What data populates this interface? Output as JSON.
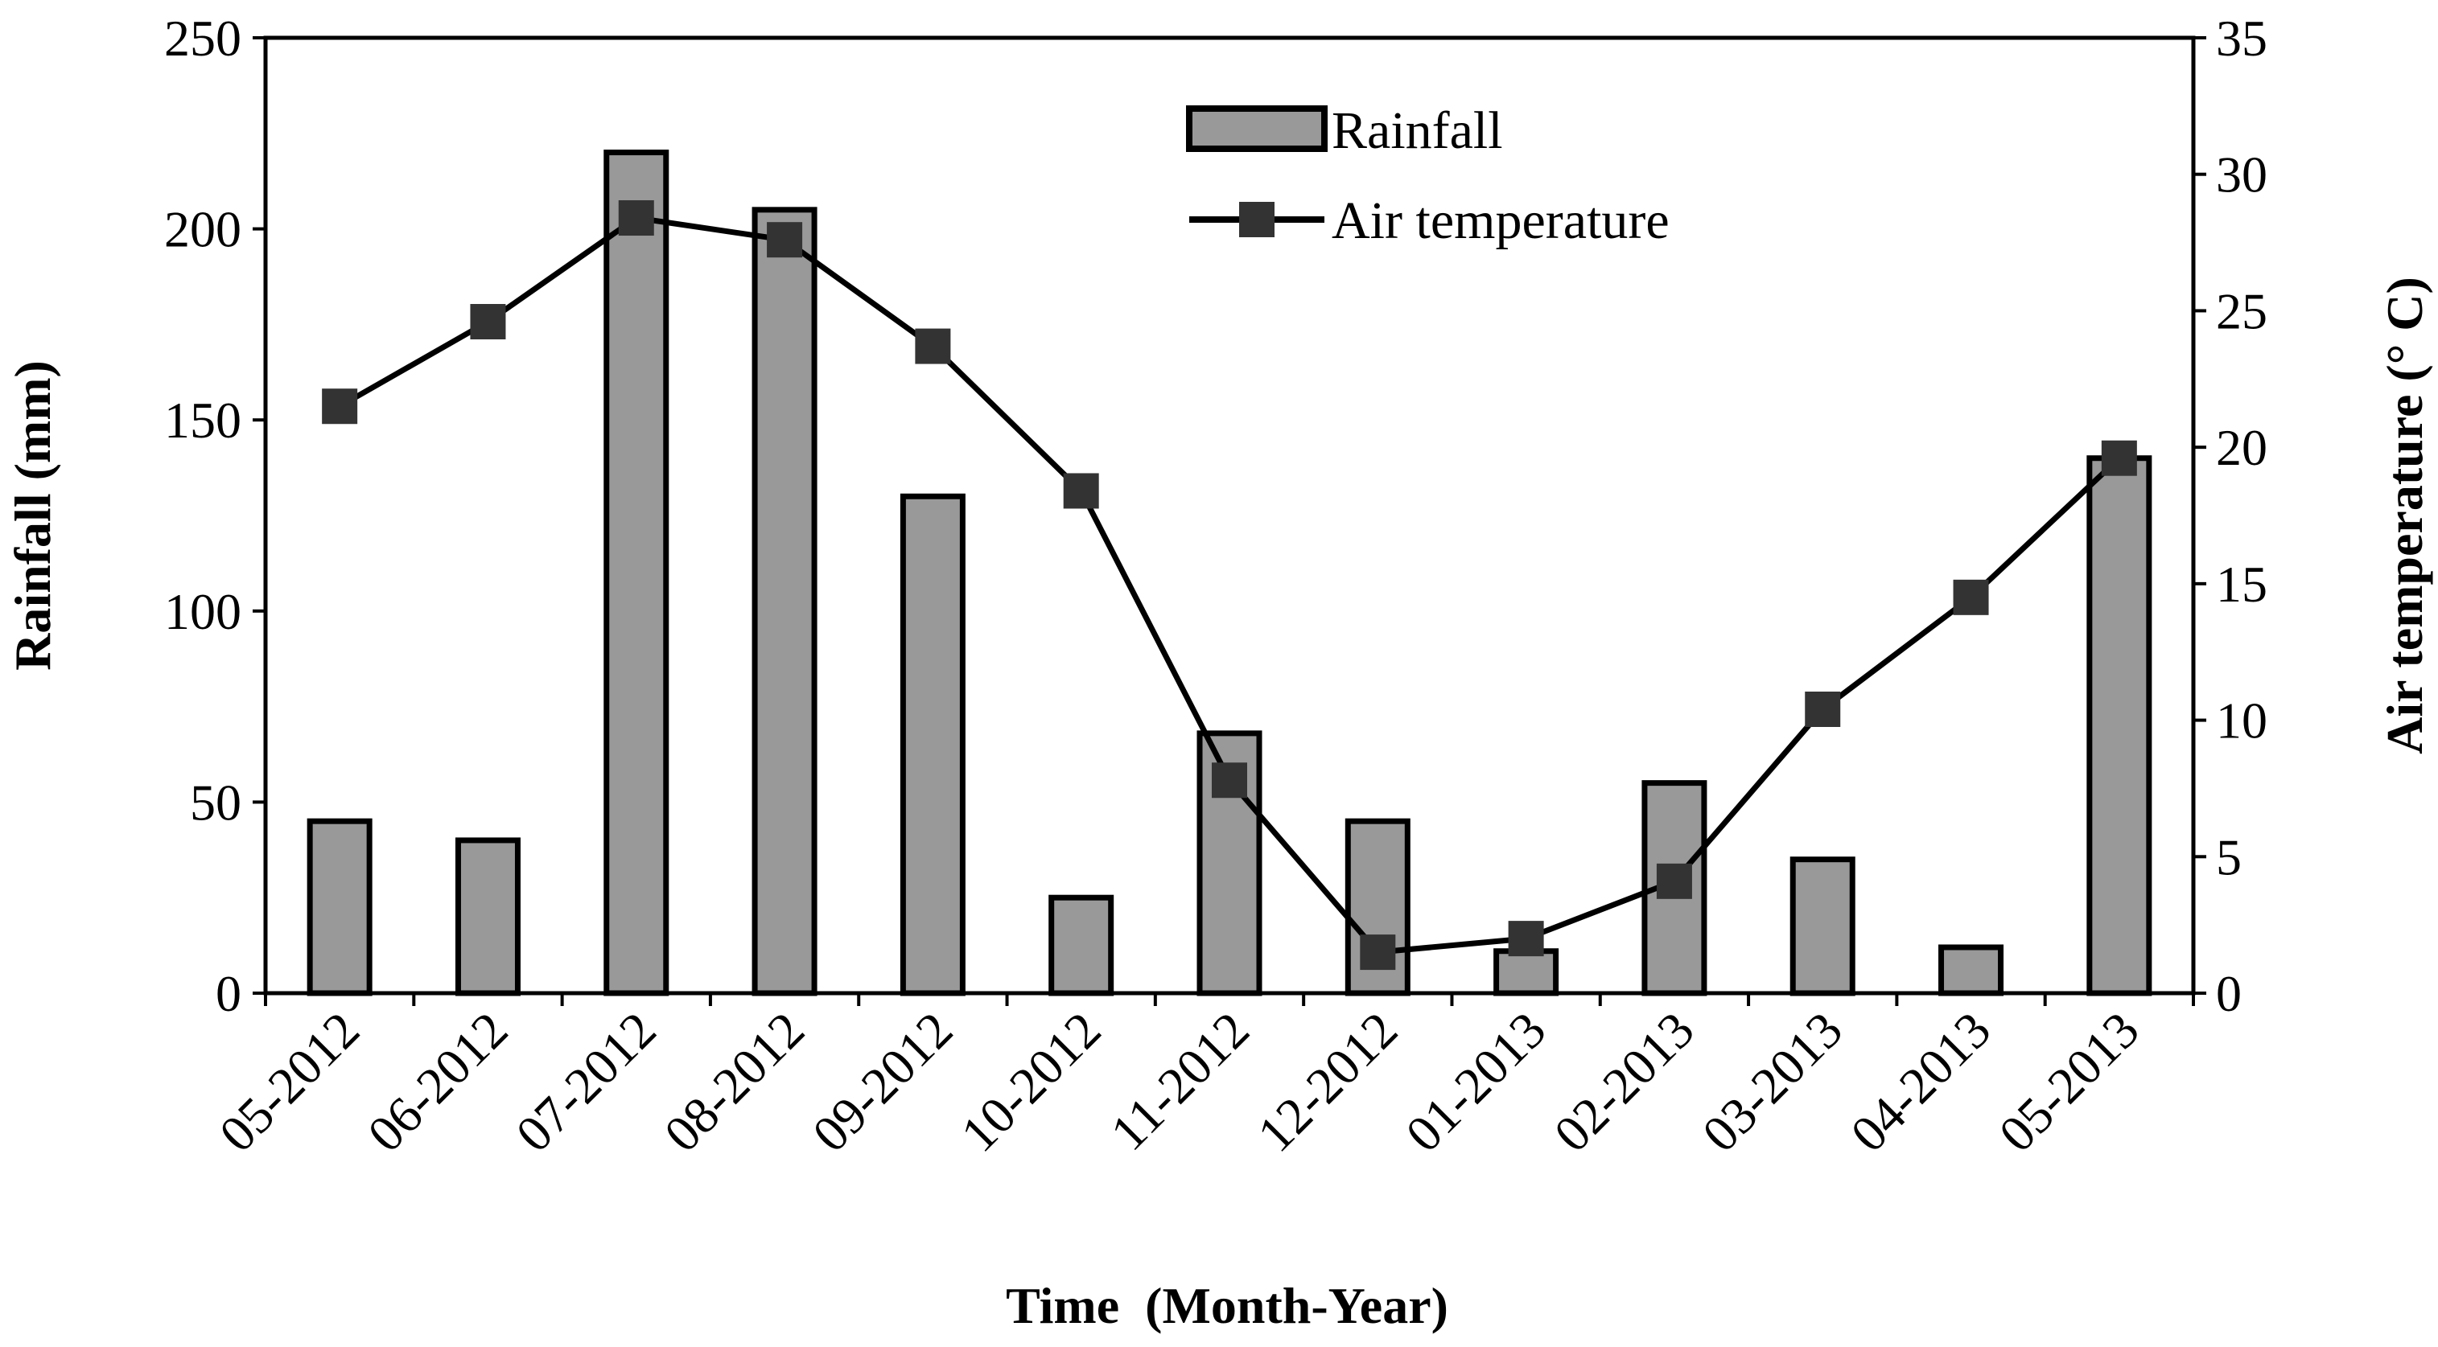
{
  "chart_data": {
    "type": "bar",
    "title": "",
    "xlabel": "Time  (Month-Year)",
    "ylabel": "Rainfall (mm)",
    "y2label": "Air temperature (° C)",
    "categories": [
      "05-2012",
      "06-2012",
      "07-2012",
      "08-2012",
      "09-2012",
      "10-2012",
      "11-2012",
      "12-2012",
      "01-2013",
      "02-2013",
      "03-2013",
      "04-2013",
      "05-2013"
    ],
    "ylim": [
      0,
      250
    ],
    "yticks": [
      0,
      50,
      100,
      150,
      200,
      250
    ],
    "y2lim": [
      0,
      35
    ],
    "y2ticks": [
      0,
      5,
      10,
      15,
      20,
      25,
      30,
      35
    ],
    "legend_position": "top-center",
    "series": [
      {
        "name": "Rainfall",
        "kind": "bar",
        "axis": "left",
        "color": "#999999",
        "values": [
          45,
          40,
          220,
          205,
          130,
          25,
          68,
          45,
          11,
          55,
          35,
          12,
          140
        ]
      },
      {
        "name": "Air temperature",
        "kind": "line",
        "axis": "right",
        "color": "#333333",
        "values": [
          21.5,
          24.6,
          28.4,
          27.6,
          23.7,
          18.4,
          7.8,
          1.5,
          2.0,
          4.1,
          10.4,
          14.5,
          19.6
        ]
      }
    ]
  }
}
